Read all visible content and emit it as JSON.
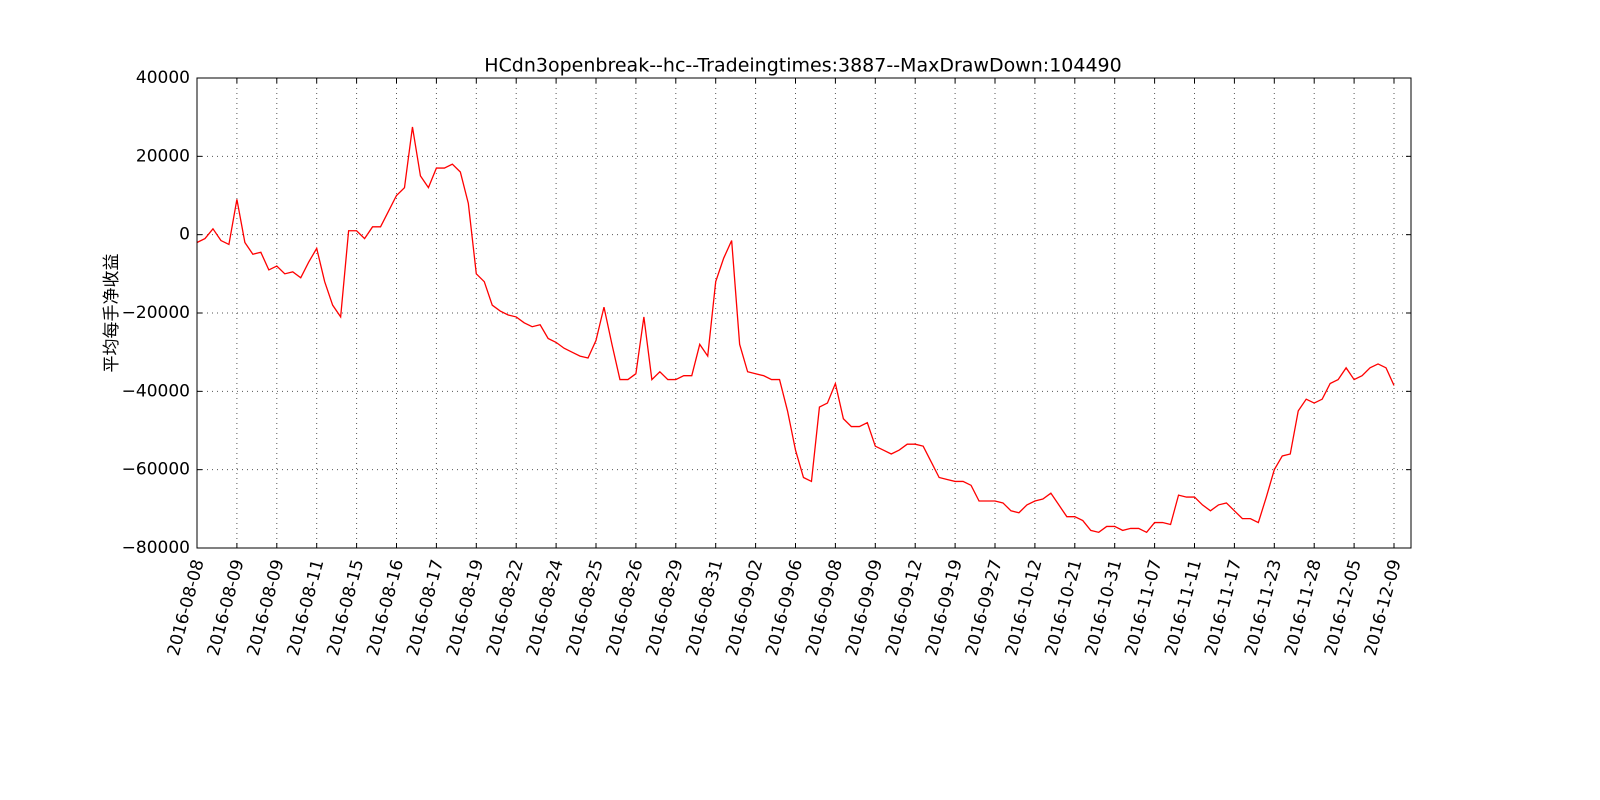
{
  "chart_data": {
    "type": "line",
    "title": "HCdn3openbreak--hc--Tradeingtimes:3887--MaxDrawDown:104490",
    "ylabel": "平均每手净收益",
    "categories": [
      "2016-08-08",
      null,
      null,
      null,
      null,
      "2016-08-09",
      null,
      null,
      null,
      null,
      "2016-08-09",
      null,
      null,
      null,
      null,
      "2016-08-11",
      null,
      null,
      null,
      null,
      "2016-08-15",
      null,
      null,
      null,
      null,
      "2016-08-16",
      null,
      null,
      null,
      null,
      "2016-08-17",
      null,
      null,
      null,
      null,
      "2016-08-19",
      null,
      null,
      null,
      null,
      "2016-08-22",
      null,
      null,
      null,
      null,
      "2016-08-24",
      null,
      null,
      null,
      null,
      "2016-08-25",
      null,
      null,
      null,
      null,
      "2016-08-26",
      null,
      null,
      null,
      null,
      "2016-08-29",
      null,
      null,
      null,
      null,
      "2016-08-31",
      null,
      null,
      null,
      null,
      "2016-09-02",
      null,
      null,
      null,
      null,
      "2016-09-06",
      null,
      null,
      null,
      null,
      "2016-09-08",
      null,
      null,
      null,
      null,
      "2016-09-09",
      null,
      null,
      null,
      null,
      "2016-09-12",
      null,
      null,
      null,
      null,
      "2016-09-19",
      null,
      null,
      null,
      null,
      "2016-09-27",
      null,
      null,
      null,
      null,
      "2016-10-12",
      null,
      null,
      null,
      null,
      "2016-10-21",
      null,
      null,
      null,
      null,
      "2016-10-31",
      null,
      null,
      null,
      null,
      "2016-11-07",
      null,
      null,
      null,
      null,
      "2016-11-11",
      null,
      null,
      null,
      null,
      "2016-11-17",
      null,
      null,
      null,
      null,
      "2016-11-23",
      null,
      null,
      null,
      null,
      "2016-11-28",
      null,
      null,
      null,
      null,
      "2016-12-05",
      null,
      null,
      null,
      null,
      "2016-12-09"
    ],
    "series": [
      {
        "color": "#ff0000",
        "values": [
          -2000,
          -1000,
          1500,
          -1500,
          -2500,
          9000,
          -2000,
          -5000,
          -4500,
          -9000,
          -8000,
          -10000,
          -9500,
          -11000,
          -7000,
          -3500,
          -12000,
          -18000,
          -21000,
          1000,
          1000,
          -1000,
          2000,
          2000,
          6000,
          10000,
          12000,
          27500,
          15000,
          12000,
          17000,
          17000,
          18000,
          16000,
          8000,
          -10000,
          -12000,
          -18000,
          -19500,
          -20500,
          -21000,
          -22500,
          -23500,
          -23000,
          -26500,
          -27500,
          -29000,
          -30000,
          -31000,
          -31500,
          -27000,
          -18500,
          -28000,
          -37000,
          -37000,
          -35500,
          -21000,
          -37000,
          -35000,
          -37000,
          -37000,
          -36000,
          -36000,
          -28000,
          -31000,
          -12000,
          -6000,
          -1500,
          -28000,
          -35000,
          -35500,
          -36000,
          -37000,
          -37000,
          -45000,
          -55000,
          -62000,
          -63000,
          -44000,
          -43000,
          -38000,
          -47000,
          -49000,
          -49000,
          -48000,
          -54000,
          -55000,
          -56000,
          -55000,
          -53500,
          -53500,
          -54000,
          -58000,
          -62000,
          -62500,
          -63000,
          -63000,
          -64000,
          -68000,
          -68000,
          -68000,
          -68500,
          -70500,
          -71000,
          -69000,
          -68000,
          -67500,
          -66000,
          -69000,
          -72000,
          -72000,
          -73000,
          -75500,
          -76000,
          -74500,
          -74500,
          -75500,
          -75000,
          -75000,
          -76000,
          -73500,
          -73500,
          -74000,
          -66500,
          -67000,
          -67000,
          -69000,
          -70500,
          -69000,
          -68500,
          -70500,
          -72500,
          -72500,
          -73500,
          -67000,
          -60000,
          -56500,
          -56000,
          -45000,
          -42000,
          -43000,
          -42000,
          -38000,
          -37000,
          -34000,
          -37000,
          -36000,
          -34000,
          -33000,
          -34000,
          -38500
        ]
      }
    ],
    "ylim": [
      -80000,
      40000
    ],
    "yticks": [
      {
        "value": -80000,
        "label": "−80000"
      },
      {
        "value": -60000,
        "label": "−60000"
      },
      {
        "value": -40000,
        "label": "−40000"
      },
      {
        "value": -20000,
        "label": "−20000"
      },
      0,
      20000,
      40000
    ],
    "grid": true
  }
}
